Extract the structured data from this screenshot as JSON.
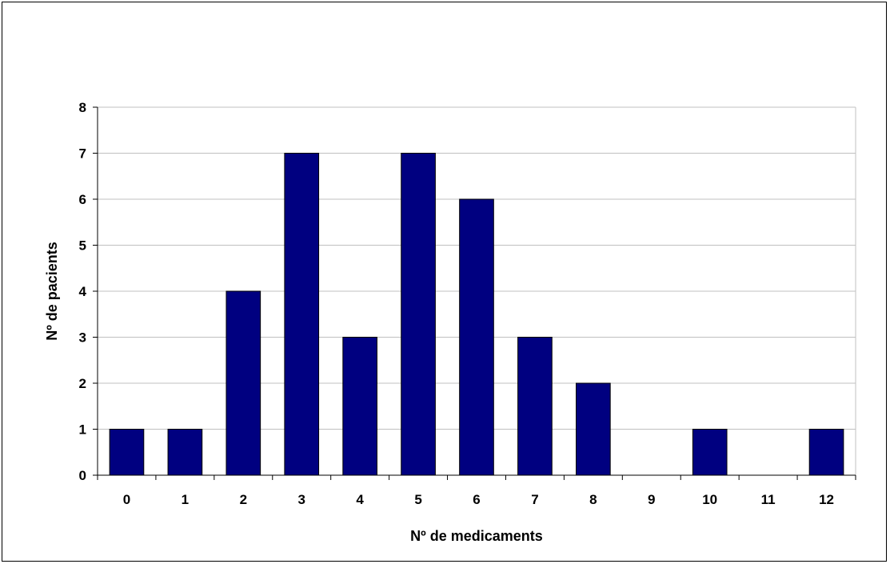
{
  "chart_data": {
    "type": "bar",
    "title": "",
    "xlabel": "Nº de medicaments",
    "ylabel": "Nº de pacients",
    "categories": [
      "0",
      "1",
      "2",
      "3",
      "4",
      "5",
      "6",
      "7",
      "8",
      "9",
      "10",
      "11",
      "12"
    ],
    "values": [
      1,
      1,
      4,
      7,
      3,
      7,
      6,
      3,
      2,
      0,
      1,
      0,
      1
    ],
    "ylim": [
      0,
      8
    ],
    "yticks": [
      "0",
      "1",
      "2",
      "3",
      "4",
      "5",
      "6",
      "7",
      "8"
    ],
    "grid": true,
    "legend": "none",
    "bar_color": "#000080",
    "bar_edge_color": "#000000"
  }
}
